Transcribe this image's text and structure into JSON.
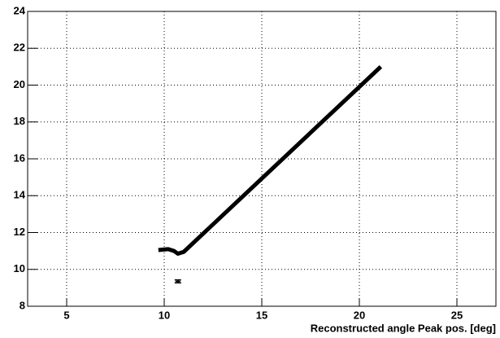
{
  "chart_data": {
    "type": "line",
    "xlabel": "Reconstructed angle Peak pos. [deg]",
    "xlim": [
      3,
      27
    ],
    "xticks": [
      5,
      10,
      15,
      20,
      25
    ],
    "ylim": [
      8,
      24
    ],
    "yticks": [
      8,
      10,
      12,
      14,
      16,
      18,
      20,
      22,
      24
    ],
    "grid": true,
    "series": [
      {
        "color": "#000000",
        "x": [
          9.7,
          10.2,
          10.5,
          10.7,
          11.0,
          21.1
        ],
        "values": [
          11.05,
          11.1,
          11.0,
          10.85,
          10.95,
          21.0
        ]
      },
      {
        "color": "#000000",
        "x": [
          10.7
        ],
        "values": [
          9.35
        ],
        "yerr": [
          0.08
        ]
      }
    ]
  }
}
